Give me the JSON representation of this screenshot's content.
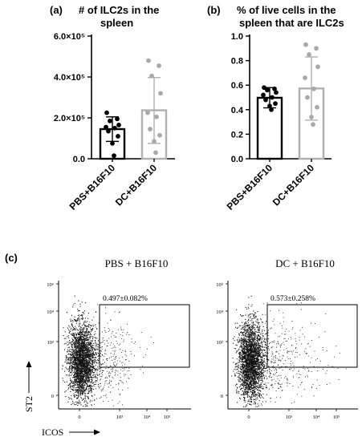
{
  "panels": {
    "a": {
      "letter": "(a)",
      "title_line1": "# of ILC2s in the",
      "title_line2": "spleen"
    },
    "b": {
      "letter": "(b)",
      "title_line1": "% of live cells in the",
      "title_line2": "spleen that are ILC2s"
    },
    "c": {
      "letter": "(c)",
      "ylabel": "ST2",
      "xlabel": "ICOS"
    }
  },
  "colors": {
    "pbs": "#000000",
    "dc_bar": "#b0b0b0",
    "dc_points": "#a8a8a8",
    "axis": "#000000",
    "dots": "#111111"
  },
  "chart_data": [
    {
      "type": "bar",
      "title": "# of ILC2s in the spleen",
      "categories": [
        "PBS+B16F10",
        "DC+B16F10"
      ],
      "ylim": [
        0,
        600000
      ],
      "yticks": [
        {
          "value": 0,
          "label": "0.0"
        },
        {
          "value": 200000,
          "label": "2.0×10⁵"
        },
        {
          "value": 400000,
          "label": "4.0×10⁵"
        },
        {
          "value": 600000,
          "label": "6.0×10⁵"
        }
      ],
      "means": [
        145000,
        237000
      ],
      "error": [
        [
          85000,
          205000
        ],
        [
          75000,
          397000
        ]
      ],
      "points": [
        [
          225000,
          195000,
          185000,
          165000,
          155000,
          150000,
          135000,
          110000,
          75000,
          15000
        ],
        [
          480000,
          455000,
          405000,
          320000,
          225000,
          205000,
          145000,
          115000,
          85000,
          30000
        ]
      ]
    },
    {
      "type": "bar",
      "title": "% of live cells in the spleen that are ILC2s",
      "categories": [
        "PBS+B16F10",
        "DC+B16F10"
      ],
      "ylim": [
        0,
        1.0
      ],
      "yticks": [
        {
          "value": 0,
          "label": "0.0"
        },
        {
          "value": 0.2,
          "label": "0.2"
        },
        {
          "value": 0.4,
          "label": "0.4"
        },
        {
          "value": 0.6,
          "label": "0.6"
        },
        {
          "value": 0.8,
          "label": "0.8"
        },
        {
          "value": 1.0,
          "label": "1.0"
        }
      ],
      "means": [
        0.497,
        0.573
      ],
      "error": [
        [
          0.415,
          0.58
        ],
        [
          0.315,
          0.83
        ]
      ],
      "points": [
        [
          0.58,
          0.57,
          0.56,
          0.54,
          0.52,
          0.5,
          0.48,
          0.45,
          0.43,
          0.4
        ],
        [
          0.93,
          0.9,
          0.85,
          0.75,
          0.66,
          0.57,
          0.5,
          0.42,
          0.34,
          0.28
        ]
      ]
    },
    {
      "type": "scatter",
      "title": "PBS + B16F10",
      "gate_label": "0.497±0.082%",
      "x_ticks": [
        "0",
        "10³",
        "10⁴",
        "10⁵"
      ],
      "y_ticks": [
        "10⁵",
        "10⁴",
        "10³",
        "0"
      ],
      "note": "flow cytometry density dot plot"
    },
    {
      "type": "scatter",
      "title": "DC + B16F10",
      "gate_label": "0.573±0.258%",
      "x_ticks": [
        "0",
        "10³",
        "10⁴",
        "10⁵"
      ],
      "y_ticks": [
        "10⁵",
        "10⁴",
        "10³",
        "0"
      ],
      "note": "flow cytometry density dot plot"
    }
  ]
}
